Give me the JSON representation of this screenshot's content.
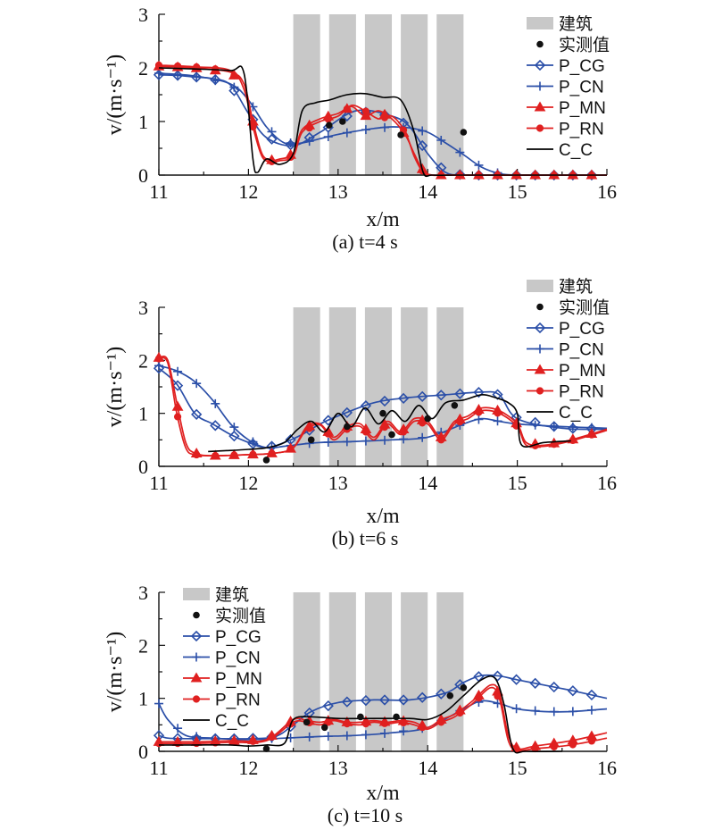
{
  "chart_data": [
    {
      "type": "line",
      "caption": "(a) t=4 s",
      "xlabel": "x/m",
      "ylabel": "v/(m·s⁻¹)",
      "xlim": [
        11,
        16
      ],
      "ylim": [
        0,
        3
      ],
      "xticks": [
        11,
        12,
        13,
        14,
        15,
        16
      ],
      "yticks": [
        0,
        1,
        2,
        3
      ],
      "legend_position": "top-right",
      "legend": [
        "建筑",
        "实测值",
        "P_CG",
        "P_CN",
        "P_MN",
        "P_RN",
        "C_C"
      ],
      "buildings": [
        [
          12.5,
          12.8
        ],
        [
          12.9,
          13.2
        ],
        [
          13.3,
          13.6
        ],
        [
          13.7,
          14.0
        ],
        [
          14.1,
          14.4
        ]
      ],
      "measured": [
        [
          12.9,
          0.93
        ],
        [
          13.05,
          1.0
        ],
        [
          13.7,
          0.75
        ],
        [
          14.4,
          0.8
        ]
      ],
      "series": [
        {
          "name": "P_CG",
          "color": "#2b4fa8",
          "marker": "diamond",
          "x": [
            11,
            11.2,
            11.4,
            11.6,
            11.8,
            12.0,
            12.2,
            12.5,
            12.8,
            13.2,
            13.6,
            13.8,
            14.0,
            14.2,
            14.4,
            14.6,
            15.0,
            15.5,
            16.0
          ],
          "y": [
            1.87,
            1.86,
            1.83,
            1.8,
            1.68,
            1.15,
            0.7,
            0.55,
            0.8,
            1.2,
            1.1,
            0.9,
            0.4,
            0.05,
            0.0,
            0.0,
            0.0,
            0.0,
            0.0
          ]
        },
        {
          "name": "P_CN",
          "color": "#2b4fa8",
          "marker": "plus",
          "x": [
            11,
            11.4,
            11.8,
            12.0,
            12.2,
            12.4,
            12.6,
            12.8,
            13.0,
            13.2,
            13.4,
            13.6,
            13.8,
            14.0,
            14.2,
            14.4,
            14.6,
            14.8,
            15.0,
            15.5,
            16.0
          ],
          "y": [
            1.9,
            1.85,
            1.7,
            1.4,
            0.9,
            0.6,
            0.6,
            0.68,
            0.76,
            0.82,
            0.87,
            0.9,
            0.88,
            0.8,
            0.6,
            0.38,
            0.15,
            0.03,
            0.0,
            0.0,
            0.0
          ]
        },
        {
          "name": "P_MN",
          "color": "#e02020",
          "marker": "triangle",
          "x": [
            11,
            11.4,
            11.8,
            11.95,
            12.05,
            12.15,
            12.25,
            12.35,
            12.5,
            12.6,
            12.8,
            13.0,
            13.15,
            13.3,
            13.45,
            13.6,
            13.75,
            13.85,
            13.95,
            14.05,
            14.2,
            14.6,
            15.0,
            15.5,
            16.0
          ],
          "y": [
            2.03,
            2.0,
            1.92,
            1.7,
            1.0,
            0.4,
            0.28,
            0.3,
            0.4,
            0.85,
            1.05,
            1.15,
            1.28,
            1.1,
            1.2,
            1.05,
            0.75,
            0.4,
            0.08,
            0.0,
            0.0,
            0.0,
            0.0,
            0.0,
            0.0
          ]
        },
        {
          "name": "P_RN",
          "color": "#e02020",
          "marker": "circle",
          "x": [
            11,
            11.4,
            11.8,
            11.95,
            12.05,
            12.15,
            12.25,
            12.35,
            12.5,
            12.6,
            12.8,
            13.0,
            13.15,
            13.3,
            13.45,
            13.6,
            13.75,
            13.85,
            13.95,
            14.05,
            14.2,
            14.6,
            15.0,
            15.5,
            16.0
          ],
          "y": [
            2.05,
            2.02,
            1.95,
            1.6,
            0.9,
            0.35,
            0.25,
            0.27,
            0.35,
            0.8,
            1.0,
            1.1,
            1.3,
            1.2,
            1.05,
            1.1,
            0.8,
            0.35,
            0.05,
            0.0,
            0.0,
            0.0,
            0.0,
            0.0,
            0.0
          ]
        },
        {
          "name": "C_C",
          "color": "#000000",
          "marker": "none",
          "x": [
            11,
            11.4,
            11.8,
            11.95,
            12.05,
            12.1,
            12.2,
            12.35,
            12.5,
            12.6,
            12.75,
            12.9,
            13.1,
            13.3,
            13.5,
            13.7,
            13.85,
            13.95,
            14.05,
            14.3,
            15.0,
            16.0
          ],
          "y": [
            2.0,
            1.98,
            1.95,
            1.9,
            0.3,
            0.05,
            0.3,
            0.2,
            0.4,
            1.2,
            1.35,
            1.4,
            1.5,
            1.52,
            1.45,
            1.4,
            0.8,
            0.05,
            0.0,
            0.0,
            0.0,
            0.0
          ]
        }
      ]
    },
    {
      "type": "line",
      "caption": "(b) t=6 s",
      "xlabel": "x/m",
      "ylabel": "v/(m·s⁻¹)",
      "xlim": [
        11,
        16
      ],
      "ylim": [
        0,
        3
      ],
      "xticks": [
        11,
        12,
        13,
        14,
        15,
        16
      ],
      "yticks": [
        0,
        1,
        2,
        3
      ],
      "legend_position": "top-right",
      "legend": [
        "建筑",
        "实测值",
        "P_CG",
        "P_CN",
        "P_MN",
        "P_RN",
        "C_C"
      ],
      "buildings": [
        [
          12.5,
          12.8
        ],
        [
          12.9,
          13.2
        ],
        [
          13.3,
          13.6
        ],
        [
          13.7,
          14.0
        ],
        [
          14.1,
          14.4
        ]
      ],
      "measured": [
        [
          12.2,
          0.12
        ],
        [
          12.7,
          0.5
        ],
        [
          13.1,
          0.75
        ],
        [
          13.5,
          1.0
        ],
        [
          13.6,
          0.6
        ],
        [
          14.0,
          0.9
        ],
        [
          14.3,
          1.15
        ]
      ],
      "series": [
        {
          "name": "P_CG",
          "color": "#2b4fa8",
          "marker": "diamond",
          "x": [
            11,
            11.2,
            11.4,
            11.6,
            11.8,
            12.0,
            12.2,
            12.4,
            12.6,
            12.8,
            13.0,
            13.4,
            13.8,
            14.2,
            14.6,
            14.8,
            15.0,
            15.5,
            16.0
          ],
          "y": [
            1.85,
            1.55,
            1.0,
            0.8,
            0.6,
            0.45,
            0.35,
            0.45,
            0.6,
            0.8,
            0.95,
            1.2,
            1.3,
            1.35,
            1.4,
            1.35,
            0.9,
            0.72,
            0.7
          ]
        },
        {
          "name": "P_CN",
          "color": "#2b4fa8",
          "marker": "plus",
          "x": [
            11,
            11.2,
            11.4,
            11.6,
            11.8,
            12.0,
            12.2,
            12.4,
            12.6,
            12.8,
            13.2,
            13.6,
            14.0,
            14.4,
            14.6,
            14.8,
            15.0,
            15.5,
            16.0
          ],
          "y": [
            1.9,
            1.8,
            1.6,
            1.25,
            0.8,
            0.5,
            0.35,
            0.38,
            0.42,
            0.45,
            0.47,
            0.5,
            0.55,
            0.8,
            0.9,
            0.85,
            0.8,
            0.75,
            0.72
          ]
        },
        {
          "name": "P_MN",
          "color": "#e02020",
          "marker": "triangle",
          "x": [
            11,
            11.1,
            11.2,
            11.3,
            11.4,
            11.6,
            12.0,
            12.3,
            12.5,
            12.65,
            12.8,
            12.95,
            13.1,
            13.25,
            13.4,
            13.55,
            13.7,
            13.85,
            14.0,
            14.15,
            14.3,
            14.45,
            14.6,
            14.8,
            15.0,
            15.1,
            15.3,
            15.6,
            16.0
          ],
          "y": [
            2.05,
            2.0,
            1.2,
            0.45,
            0.25,
            0.2,
            0.22,
            0.25,
            0.35,
            0.75,
            0.8,
            0.55,
            0.75,
            0.8,
            0.55,
            0.85,
            0.65,
            0.9,
            0.85,
            0.55,
            0.85,
            0.95,
            1.1,
            1.05,
            0.8,
            0.45,
            0.4,
            0.5,
            0.7
          ]
        },
        {
          "name": "P_RN",
          "color": "#e02020",
          "marker": "circle",
          "x": [
            11,
            11.1,
            11.2,
            11.3,
            11.4,
            11.6,
            12.0,
            12.3,
            12.5,
            12.65,
            12.8,
            12.95,
            13.1,
            13.25,
            13.4,
            13.55,
            13.7,
            13.85,
            14.0,
            14.15,
            14.3,
            14.45,
            14.6,
            14.8,
            15.0,
            15.1,
            15.3,
            15.6,
            16.0
          ],
          "y": [
            2.03,
            1.95,
            1.0,
            0.35,
            0.22,
            0.2,
            0.22,
            0.25,
            0.35,
            0.7,
            0.78,
            0.5,
            0.7,
            0.75,
            0.5,
            0.8,
            0.6,
            0.85,
            0.8,
            0.5,
            0.8,
            0.9,
            1.05,
            1.0,
            0.75,
            0.4,
            0.38,
            0.48,
            0.68
          ]
        },
        {
          "name": "C_C",
          "color": "#000000",
          "marker": "none",
          "x": [
            11.55,
            11.8,
            12.0,
            12.2,
            12.4,
            12.55,
            12.7,
            12.85,
            13.0,
            13.15,
            13.3,
            13.45,
            13.6,
            13.75,
            13.9,
            14.05,
            14.2,
            14.4,
            14.6,
            14.75,
            14.9,
            15.0,
            15.05,
            15.3,
            15.6
          ],
          "y": [
            0.28,
            0.3,
            0.32,
            0.35,
            0.45,
            0.7,
            0.85,
            0.65,
            1.0,
            0.75,
            1.1,
            0.8,
            1.05,
            0.85,
            1.15,
            0.9,
            1.2,
            1.25,
            1.35,
            1.3,
            1.2,
            1.0,
            0.4,
            0.45,
            0.48
          ]
        }
      ]
    },
    {
      "type": "line",
      "caption": "(c) t=10 s",
      "xlabel": "x/m",
      "ylabel": "v/(m·s⁻¹)",
      "xlim": [
        11,
        16
      ],
      "ylim": [
        0,
        3
      ],
      "xticks": [
        11,
        12,
        13,
        14,
        15,
        16
      ],
      "yticks": [
        0,
        1,
        2,
        3
      ],
      "legend_position": "top-left",
      "legend": [
        "建筑",
        "实测值",
        "P_CG",
        "P_CN",
        "P_MN",
        "P_RN",
        "C_C"
      ],
      "buildings": [
        [
          12.5,
          12.8
        ],
        [
          12.9,
          13.2
        ],
        [
          13.3,
          13.6
        ],
        [
          13.7,
          14.0
        ],
        [
          14.1,
          14.4
        ]
      ],
      "measured": [
        [
          12.2,
          0.05
        ],
        [
          12.65,
          0.55
        ],
        [
          12.85,
          0.45
        ],
        [
          13.25,
          0.65
        ],
        [
          13.65,
          0.65
        ],
        [
          14.25,
          1.05
        ],
        [
          14.4,
          1.2
        ]
      ],
      "series": [
        {
          "name": "P_CG",
          "color": "#2b4fa8",
          "marker": "diamond",
          "x": [
            11,
            11.1,
            11.3,
            11.6,
            12.0,
            12.3,
            12.5,
            12.7,
            13.0,
            13.4,
            13.8,
            14.2,
            14.4,
            14.6,
            14.8,
            15.0,
            15.3,
            15.6,
            16.0
          ],
          "y": [
            0.3,
            0.25,
            0.24,
            0.24,
            0.24,
            0.28,
            0.5,
            0.75,
            0.92,
            0.97,
            0.97,
            1.1,
            1.3,
            1.43,
            1.42,
            1.35,
            1.25,
            1.15,
            1.0
          ]
        },
        {
          "name": "P_CN",
          "color": "#2b4fa8",
          "marker": "plus",
          "x": [
            11,
            11.1,
            11.3,
            11.6,
            12.0,
            12.4,
            12.8,
            13.2,
            13.6,
            14.0,
            14.4,
            14.6,
            14.8,
            15.0,
            15.3,
            15.6,
            16.0
          ],
          "y": [
            0.9,
            0.6,
            0.3,
            0.25,
            0.22,
            0.25,
            0.28,
            0.3,
            0.35,
            0.45,
            0.8,
            0.95,
            0.9,
            0.8,
            0.75,
            0.75,
            0.8
          ]
        },
        {
          "name": "P_MN",
          "color": "#e02020",
          "marker": "triangle",
          "x": [
            11,
            11.4,
            11.8,
            12.2,
            12.5,
            12.65,
            12.8,
            12.95,
            13.1,
            13.25,
            13.4,
            13.55,
            13.7,
            13.85,
            14.0,
            14.15,
            14.3,
            14.5,
            14.7,
            14.8,
            14.9,
            15.0,
            15.2,
            15.6,
            16.0
          ],
          "y": [
            0.18,
            0.18,
            0.2,
            0.22,
            0.6,
            0.58,
            0.55,
            0.6,
            0.55,
            0.55,
            0.58,
            0.55,
            0.58,
            0.55,
            0.45,
            0.6,
            0.7,
            0.95,
            1.25,
            1.1,
            0.3,
            0.05,
            0.1,
            0.2,
            0.35
          ]
        },
        {
          "name": "P_RN",
          "color": "#e02020",
          "marker": "circle",
          "x": [
            11,
            11.4,
            11.8,
            12.2,
            12.5,
            12.65,
            12.8,
            12.95,
            13.1,
            13.25,
            13.4,
            13.55,
            13.7,
            13.85,
            14.0,
            14.15,
            14.3,
            14.5,
            14.7,
            14.8,
            14.9,
            15.0,
            15.2,
            15.6,
            16.0
          ],
          "y": [
            0.15,
            0.15,
            0.17,
            0.2,
            0.55,
            0.55,
            0.5,
            0.58,
            0.52,
            0.5,
            0.55,
            0.52,
            0.55,
            0.5,
            0.42,
            0.55,
            0.65,
            0.9,
            1.2,
            1.0,
            0.2,
            0.02,
            0.05,
            0.12,
            0.25
          ]
        },
        {
          "name": "C_C",
          "color": "#000000",
          "marker": "none",
          "x": [
            11,
            11.4,
            11.8,
            12.0,
            12.2,
            12.4,
            12.5,
            12.7,
            13.0,
            13.4,
            13.8,
            14.0,
            14.2,
            14.4,
            14.6,
            14.75,
            14.85,
            14.95,
            15.1,
            15.5
          ],
          "y": [
            0.12,
            0.12,
            0.12,
            0.1,
            0.12,
            0.15,
            0.6,
            0.65,
            0.62,
            0.62,
            0.62,
            0.6,
            0.75,
            1.05,
            1.35,
            1.38,
            0.9,
            0.05,
            0.0,
            0.0
          ]
        }
      ]
    }
  ]
}
